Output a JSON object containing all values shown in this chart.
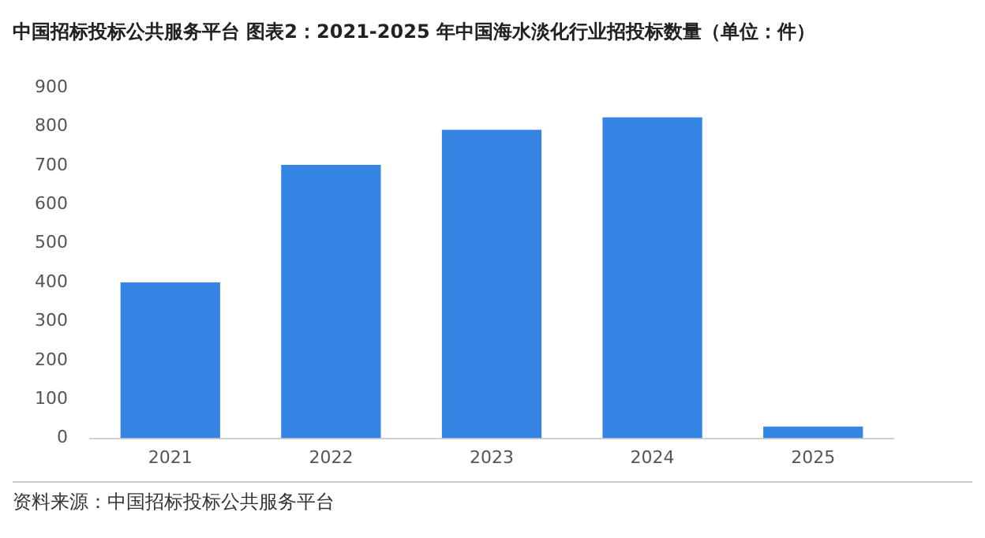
{
  "chart_data": {
    "type": "bar",
    "title": "中国招标投标公共服务平台  图表2：2021-2025 年中国海水淡化行业招投标数量（单位：件）",
    "categories": [
      "2021",
      "2022",
      "2023",
      "2024",
      "2025"
    ],
    "values": [
      400,
      702,
      792,
      824,
      30
    ],
    "color": "#3584e4",
    "ylim": [
      0,
      900
    ],
    "yticks": [
      0,
      100,
      200,
      300,
      400,
      500,
      600,
      700,
      800,
      900
    ],
    "grid": false,
    "annotations": [
      "资料来源：中国招标投标公共服务平台"
    ]
  }
}
